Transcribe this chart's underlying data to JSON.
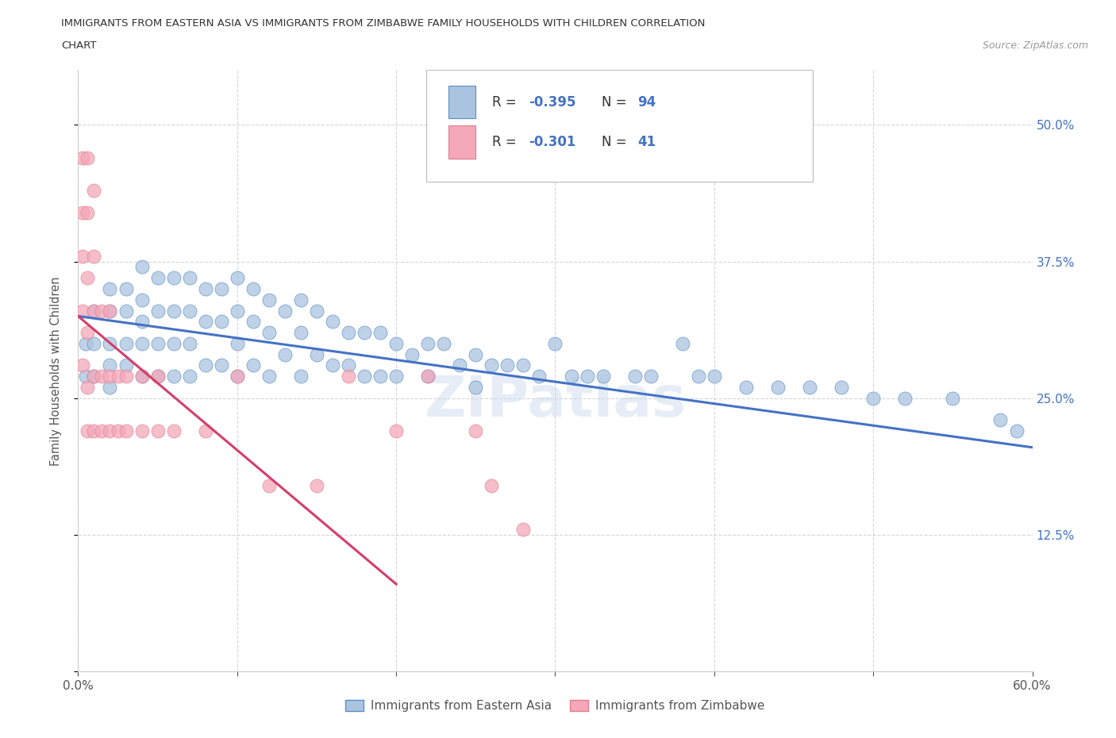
{
  "title_line1": "IMMIGRANTS FROM EASTERN ASIA VS IMMIGRANTS FROM ZIMBABWE FAMILY HOUSEHOLDS WITH CHILDREN CORRELATION",
  "title_line2": "CHART",
  "source": "Source: ZipAtlas.com",
  "ylabel": "Family Households with Children",
  "xlim": [
    0.0,
    0.6
  ],
  "ylim": [
    0.0,
    0.55
  ],
  "x_ticks": [
    0.0,
    0.1,
    0.2,
    0.3,
    0.4,
    0.5,
    0.6
  ],
  "y_ticks": [
    0.0,
    0.125,
    0.25,
    0.375,
    0.5
  ],
  "grid_color": "#cccccc",
  "background_color": "#ffffff",
  "blue_fill_color": "#aac4e0",
  "pink_fill_color": "#f4a7b9",
  "blue_edge_color": "#5b8ec4",
  "pink_edge_color": "#e08090",
  "blue_line_color": "#4472c4",
  "pink_line_color": "#d43f6a",
  "tick_label_color": "#4472c4",
  "text_color": "#333333",
  "source_color": "#999999",
  "legend_label_blue": "Immigrants from Eastern Asia",
  "legend_label_pink": "Immigrants from Zimbabwe",
  "watermark": "ZIPatlas",
  "blue_trendline_x": [
    0.0,
    0.6
  ],
  "blue_trendline_y": [
    0.325,
    0.205
  ],
  "pink_trendline_x": [
    0.0,
    0.2
  ],
  "pink_trendline_y": [
    0.325,
    0.08
  ],
  "blue_scatter_x": [
    0.005,
    0.005,
    0.01,
    0.01,
    0.01,
    0.02,
    0.02,
    0.02,
    0.02,
    0.02,
    0.03,
    0.03,
    0.03,
    0.03,
    0.04,
    0.04,
    0.04,
    0.04,
    0.04,
    0.05,
    0.05,
    0.05,
    0.05,
    0.06,
    0.06,
    0.06,
    0.06,
    0.07,
    0.07,
    0.07,
    0.07,
    0.08,
    0.08,
    0.08,
    0.09,
    0.09,
    0.09,
    0.1,
    0.1,
    0.1,
    0.1,
    0.11,
    0.11,
    0.11,
    0.12,
    0.12,
    0.12,
    0.13,
    0.13,
    0.14,
    0.14,
    0.14,
    0.15,
    0.15,
    0.16,
    0.16,
    0.17,
    0.17,
    0.18,
    0.18,
    0.19,
    0.19,
    0.2,
    0.2,
    0.21,
    0.22,
    0.22,
    0.23,
    0.24,
    0.25,
    0.25,
    0.26,
    0.27,
    0.28,
    0.29,
    0.3,
    0.31,
    0.32,
    0.33,
    0.35,
    0.36,
    0.38,
    0.39,
    0.4,
    0.42,
    0.44,
    0.46,
    0.48,
    0.5,
    0.52,
    0.55,
    0.58,
    0.59
  ],
  "blue_scatter_y": [
    0.3,
    0.27,
    0.33,
    0.3,
    0.27,
    0.35,
    0.33,
    0.3,
    0.28,
    0.26,
    0.35,
    0.33,
    0.3,
    0.28,
    0.37,
    0.34,
    0.32,
    0.3,
    0.27,
    0.36,
    0.33,
    0.3,
    0.27,
    0.36,
    0.33,
    0.3,
    0.27,
    0.36,
    0.33,
    0.3,
    0.27,
    0.35,
    0.32,
    0.28,
    0.35,
    0.32,
    0.28,
    0.36,
    0.33,
    0.3,
    0.27,
    0.35,
    0.32,
    0.28,
    0.34,
    0.31,
    0.27,
    0.33,
    0.29,
    0.34,
    0.31,
    0.27,
    0.33,
    0.29,
    0.32,
    0.28,
    0.31,
    0.28,
    0.31,
    0.27,
    0.31,
    0.27,
    0.3,
    0.27,
    0.29,
    0.3,
    0.27,
    0.3,
    0.28,
    0.29,
    0.26,
    0.28,
    0.28,
    0.28,
    0.27,
    0.3,
    0.27,
    0.27,
    0.27,
    0.27,
    0.27,
    0.3,
    0.27,
    0.27,
    0.26,
    0.26,
    0.26,
    0.26,
    0.25,
    0.25,
    0.25,
    0.23,
    0.22
  ],
  "pink_scatter_x": [
    0.003,
    0.003,
    0.003,
    0.003,
    0.003,
    0.006,
    0.006,
    0.006,
    0.006,
    0.006,
    0.006,
    0.01,
    0.01,
    0.01,
    0.01,
    0.01,
    0.015,
    0.015,
    0.015,
    0.02,
    0.02,
    0.02,
    0.025,
    0.025,
    0.03,
    0.03,
    0.04,
    0.04,
    0.05,
    0.05,
    0.06,
    0.08,
    0.1,
    0.12,
    0.15,
    0.17,
    0.2,
    0.22,
    0.25,
    0.26,
    0.28
  ],
  "pink_scatter_y": [
    0.47,
    0.42,
    0.38,
    0.33,
    0.28,
    0.47,
    0.42,
    0.36,
    0.31,
    0.26,
    0.22,
    0.44,
    0.38,
    0.33,
    0.27,
    0.22,
    0.33,
    0.27,
    0.22,
    0.33,
    0.27,
    0.22,
    0.27,
    0.22,
    0.27,
    0.22,
    0.27,
    0.22,
    0.27,
    0.22,
    0.22,
    0.22,
    0.27,
    0.17,
    0.17,
    0.27,
    0.22,
    0.27,
    0.22,
    0.17,
    0.13
  ]
}
